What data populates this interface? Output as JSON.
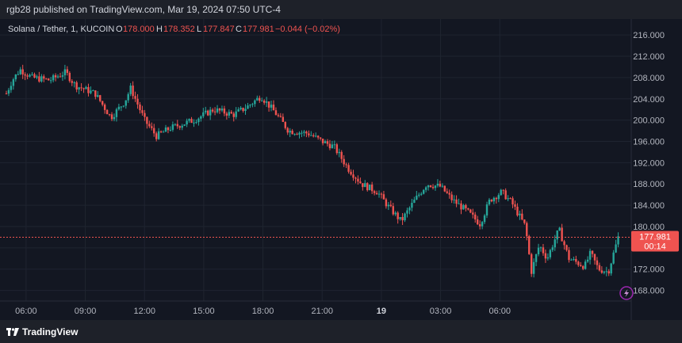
{
  "header": {
    "publish_text": "rgb28 published on TradingView.com, Mar 19, 2024 07:50 UTC-4"
  },
  "legend": {
    "symbol": "Solana / Tether, 1, KUCOIN",
    "o_label": "O",
    "o_value": "178.000",
    "h_label": "H",
    "h_value": "178.352",
    "l_label": "L",
    "l_value": "177.847",
    "c_label": "C",
    "c_value": "177.981",
    "change": "−0.044 (−0.02%)"
  },
  "price_tag": {
    "price": "177.981",
    "countdown": "00:14"
  },
  "footer": {
    "brand": "TradingView"
  },
  "colors": {
    "up": "#26a69a",
    "down": "#ef5350",
    "background": "#131722",
    "grid": "#1f2430",
    "axis_text": "#b2b5be",
    "price_line": "#ef5350"
  },
  "chart_data": {
    "type": "candlestick",
    "symbol": "SOL/USDT",
    "interval": "1 minute",
    "exchange": "KUCOIN",
    "y_ticks": [
      "216.000",
      "212.000",
      "208.000",
      "204.000",
      "200.000",
      "196.000",
      "192.000",
      "188.000",
      "184.000",
      "180.000",
      "176.000",
      "172.000",
      "168.000"
    ],
    "x_ticks": [
      "06:00",
      "09:00",
      "12:00",
      "15:00",
      "18:00",
      "21:00",
      "19",
      "03:00",
      "06:00"
    ],
    "ylim": [
      166,
      219
    ],
    "grid": true,
    "last_price": 177.981,
    "path": [
      {
        "t": 0.0,
        "p": 205.0
      },
      {
        "t": 0.3,
        "p": 207.5
      },
      {
        "t": 0.7,
        "p": 209.5
      },
      {
        "t": 1.3,
        "p": 208.0
      },
      {
        "t": 2.2,
        "p": 207.5
      },
      {
        "t": 3.0,
        "p": 209.0
      },
      {
        "t": 3.5,
        "p": 206.5
      },
      {
        "t": 4.5,
        "p": 205.0
      },
      {
        "t": 5.3,
        "p": 200.5
      },
      {
        "t": 6.0,
        "p": 203.5
      },
      {
        "t": 6.3,
        "p": 206.0
      },
      {
        "t": 7.0,
        "p": 200.0
      },
      {
        "t": 7.6,
        "p": 197.0
      },
      {
        "t": 8.3,
        "p": 198.5
      },
      {
        "t": 9.5,
        "p": 200.0
      },
      {
        "t": 10.5,
        "p": 202.0
      },
      {
        "t": 11.5,
        "p": 201.0
      },
      {
        "t": 12.2,
        "p": 202.5
      },
      {
        "t": 12.9,
        "p": 204.5
      },
      {
        "t": 13.6,
        "p": 201.5
      },
      {
        "t": 14.3,
        "p": 198.0
      },
      {
        "t": 15.3,
        "p": 197.5
      },
      {
        "t": 16.0,
        "p": 196.0
      },
      {
        "t": 16.6,
        "p": 195.0
      },
      {
        "t": 17.3,
        "p": 191.0
      },
      {
        "t": 18.0,
        "p": 188.0
      },
      {
        "t": 18.8,
        "p": 186.5
      },
      {
        "t": 19.3,
        "p": 184.0
      },
      {
        "t": 20.0,
        "p": 181.0
      },
      {
        "t": 20.7,
        "p": 185.0
      },
      {
        "t": 21.3,
        "p": 188.0
      },
      {
        "t": 22.0,
        "p": 187.5
      },
      {
        "t": 22.6,
        "p": 185.0
      },
      {
        "t": 23.3,
        "p": 183.0
      },
      {
        "t": 24.0,
        "p": 180.5
      },
      {
        "t": 24.5,
        "p": 185.0
      },
      {
        "t": 25.1,
        "p": 186.5
      },
      {
        "t": 25.6,
        "p": 184.5
      },
      {
        "t": 26.3,
        "p": 180.0
      },
      {
        "t": 26.6,
        "p": 171.5
      },
      {
        "t": 27.0,
        "p": 176.5
      },
      {
        "t": 27.4,
        "p": 174.0
      },
      {
        "t": 28.0,
        "p": 179.5
      },
      {
        "t": 28.5,
        "p": 174.0
      },
      {
        "t": 29.3,
        "p": 172.5
      },
      {
        "t": 29.6,
        "p": 175.0
      },
      {
        "t": 30.0,
        "p": 172.0
      },
      {
        "t": 30.5,
        "p": 171.5
      },
      {
        "t": 31.0,
        "p": 178.0
      }
    ]
  }
}
